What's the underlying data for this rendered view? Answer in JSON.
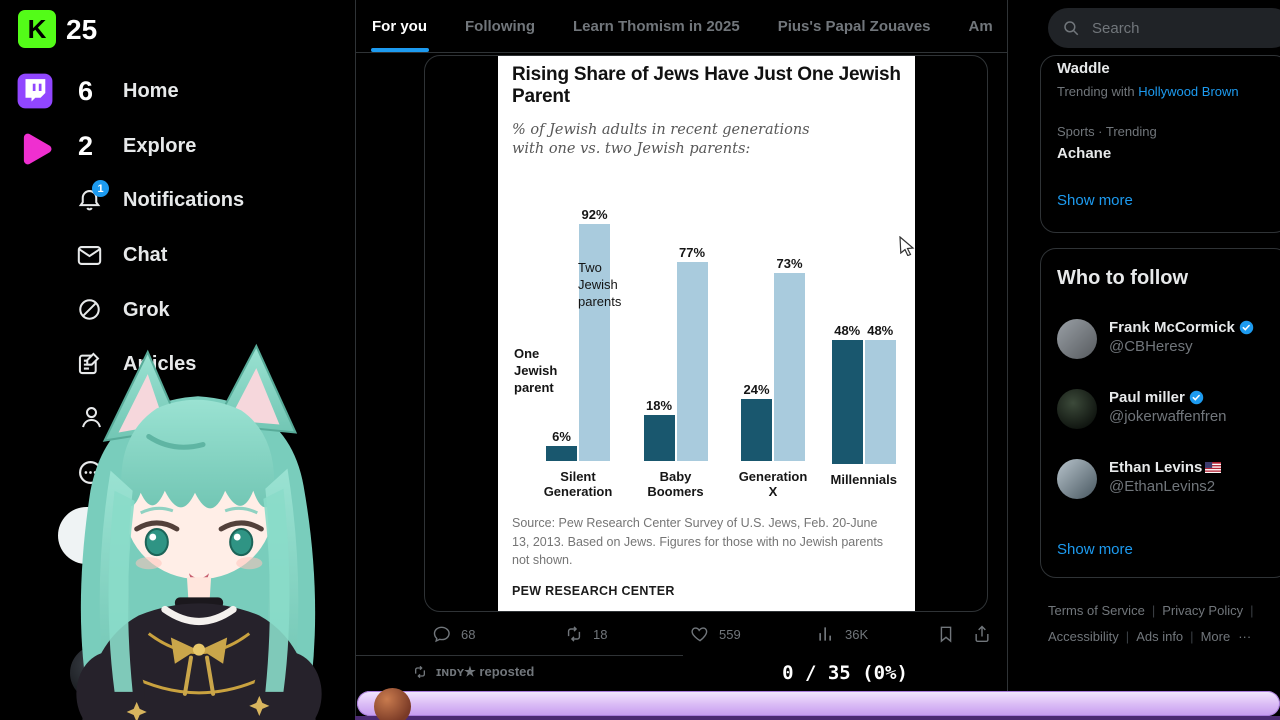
{
  "colors": {
    "accent_blue": "#1d9bf0",
    "kick_green": "#53fc18",
    "twitch_purple": "#9146ff",
    "play_pink": "#ef2fd0",
    "progress_purple": "#d7b8f5"
  },
  "stream": {
    "kick_logo_text": "K",
    "kick_count": "25",
    "twitch_count": "6",
    "play_count": "2",
    "counter": "0 / 35 (0%)"
  },
  "nav": {
    "home": "Home",
    "explore": "Explore",
    "notifications": "Notifications",
    "notifications_badge": "1",
    "chat": "Chat",
    "grok": "Grok",
    "articles": "Articles"
  },
  "tabs": {
    "for_you": "For you",
    "following": "Following",
    "learn": "Learn Thomism in 2025",
    "pius": "Pius's Papal Zouaves",
    "am": "Am"
  },
  "tweet": {
    "comments": "68",
    "reposts": "18",
    "likes": "559",
    "views": "36K",
    "repost_line": "ɪɴᴅʏ★ reposted"
  },
  "chart_data": {
    "type": "bar",
    "title": "Rising Share of Jews Have Just One Jewish Parent",
    "subtitle": "% of Jewish adults in recent generations with one vs. two Jewish parents:",
    "categories": [
      "Silent Generation",
      "Baby Boomers",
      "Generation X",
      "Millennials"
    ],
    "series": [
      {
        "name": "One Jewish parent",
        "color": "#19576e",
        "values": [
          6,
          18,
          24,
          48
        ]
      },
      {
        "name": "Two Jewish parents",
        "color": "#a9cbdd",
        "values": [
          92,
          77,
          73,
          48
        ]
      }
    ],
    "ylim": [
      0,
      100
    ],
    "annotations": [
      "One Jewish parent",
      "Two Jewish parents"
    ],
    "source": "Source: Pew Research Center Survey of U.S. Jews, Feb. 20-June 13, 2013. Based on Jews. Figures for those with no Jewish parents not shown.",
    "footer": "PEW RESEARCH CENTER"
  },
  "search": {
    "placeholder": "Search"
  },
  "trending": {
    "trend1_name": "Waddle",
    "trend1_meta_prefix": "Trending with",
    "trend1_meta_link": "Hollywood Brown",
    "trend2_context": "Sports · Trending",
    "trend2_name": "Achane",
    "show_more": "Show more"
  },
  "who_to_follow": {
    "title": "Who to follow",
    "users": [
      {
        "name": "Frank McCormick",
        "handle": "@CBHeresy"
      },
      {
        "name": "Paul miller",
        "handle": "@jokerwaffenfren"
      },
      {
        "name": "Ethan Levins",
        "handle": "@EthanLevins2"
      }
    ],
    "show_more": "Show more"
  },
  "footer": {
    "links": [
      "Terms of Service",
      "Privacy Policy",
      "Accessibility",
      "Ads info",
      "More"
    ],
    "ellipsis": "···"
  }
}
